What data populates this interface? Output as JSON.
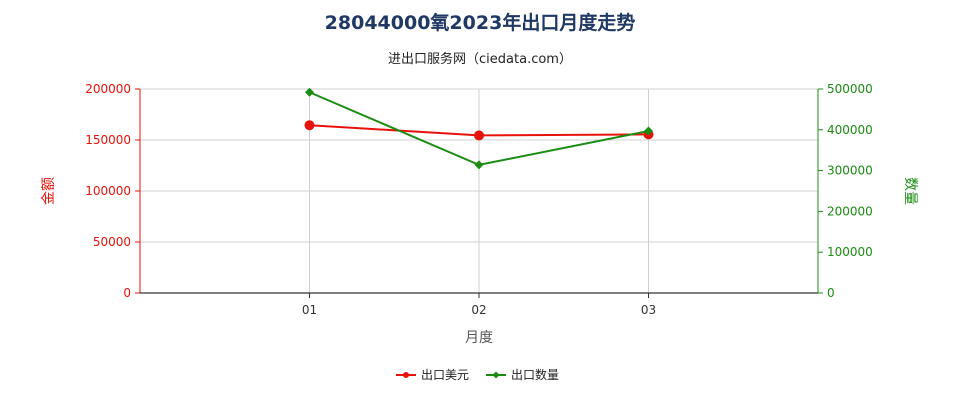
{
  "chart_data": {
    "type": "line",
    "title": "28044000氧2023年出口月度走势",
    "subtitle": "进出口服务网（ciedata.com）",
    "xlabel": "月度",
    "ylabel_left": "金额",
    "ylabel_right": "数量",
    "categories": [
      "01",
      "02",
      "03"
    ],
    "ylim_left": [
      0,
      200000
    ],
    "ylim_right": [
      0,
      500000
    ],
    "yticks_left": [
      "0",
      "50000",
      "100000",
      "150000",
      "200000"
    ],
    "yticks_right": [
      "0",
      "100000",
      "200000",
      "300000",
      "400000",
      "500000"
    ],
    "grid": true,
    "legend_position": "bottom",
    "series": [
      {
        "name": "出口美元",
        "axis": "left",
        "color": "#e8120c",
        "values": [
          164500,
          154500,
          155500
        ]
      },
      {
        "name": "出口数量",
        "axis": "right",
        "color": "#1a8c12",
        "values": [
          492000,
          314000,
          397000
        ]
      }
    ],
    "colors": {
      "left_axis": "#e8120c",
      "right_axis": "#1a8c12",
      "title": "#1f3864"
    }
  }
}
